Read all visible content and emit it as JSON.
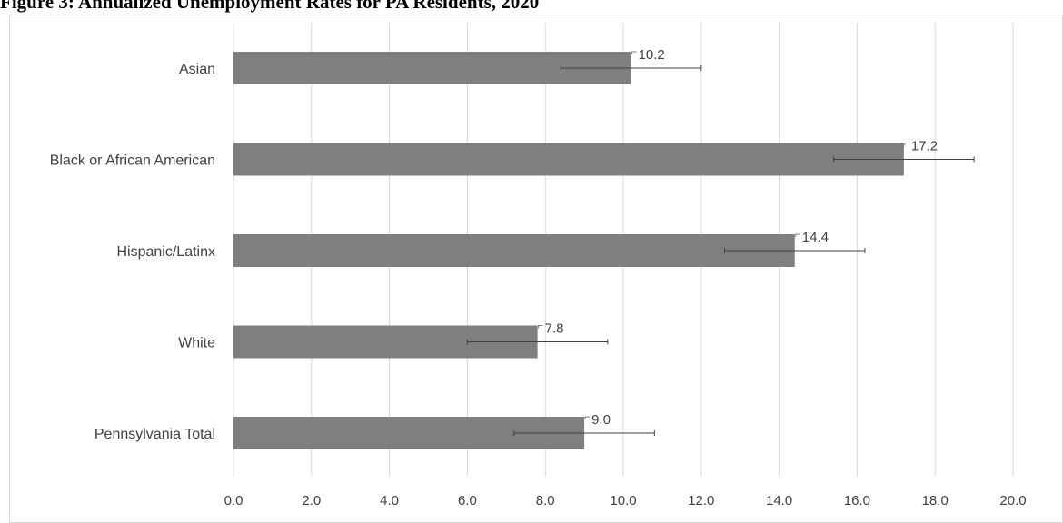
{
  "figure": {
    "title": "Figure 3: Annualized Unemployment Rates for PA Residents, 2020"
  },
  "chart_data": {
    "type": "bar",
    "orientation": "horizontal",
    "title": "Figure 3: Annualized Unemployment Rates for PA Residents, 2020",
    "categories": [
      "Asian",
      "Black or African American",
      "Hispanic/Latinx",
      "White",
      "Pennsylvania Total"
    ],
    "values": [
      10.2,
      17.2,
      14.4,
      7.8,
      9.0
    ],
    "value_labels": [
      "10.2",
      "17.2",
      "14.4",
      "7.8",
      "9.0"
    ],
    "error_low": [
      8.4,
      15.4,
      12.6,
      6.0,
      7.2
    ],
    "error_high": [
      12.0,
      19.0,
      16.2,
      9.6,
      10.8
    ],
    "xlim": [
      0,
      20
    ],
    "xticks": [
      "0.0",
      "2.0",
      "4.0",
      "6.0",
      "8.0",
      "10.0",
      "12.0",
      "14.0",
      "16.0",
      "18.0",
      "20.0"
    ],
    "grid": true,
    "legend": "none",
    "colors": {
      "bar": "#7f7f7f",
      "grid": "#d9d9d9",
      "error": "#404040",
      "text": "#404040"
    }
  }
}
